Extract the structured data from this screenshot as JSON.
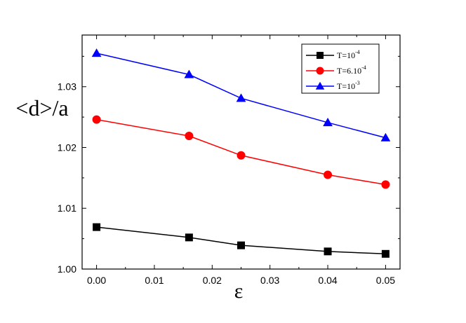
{
  "chart_data": {
    "type": "line",
    "xlabel": "ε",
    "ylabel": "<d>/a",
    "xlim": [
      -0.0025,
      0.0525
    ],
    "ylim": [
      1.0,
      1.0385
    ],
    "xticks": [
      0.0,
      0.01,
      0.02,
      0.03,
      0.04,
      0.05
    ],
    "xtick_labels": [
      "0.00",
      "0.01",
      "0.02",
      "0.03",
      "0.04",
      "0.05"
    ],
    "yticks": [
      1.0,
      1.01,
      1.02,
      1.03
    ],
    "ytick_labels": [
      "1.00",
      "1.01",
      "1.02",
      "1.03"
    ],
    "x": [
      0.0,
      0.016,
      0.025,
      0.04,
      0.05
    ],
    "legend_position": "top-right",
    "grid": false,
    "series": [
      {
        "name": "T=10^-4",
        "legend_base": "T=10",
        "legend_exp": "-4",
        "color": "#000000",
        "marker": "square",
        "values": [
          1.0069,
          1.0052,
          1.0039,
          1.0029,
          1.0025
        ]
      },
      {
        "name": "T=6.10^-4",
        "legend_base": "T=6.10",
        "legend_exp": "-4",
        "color": "#ff0000",
        "marker": "circle",
        "values": [
          1.0246,
          1.0219,
          1.0187,
          1.0155,
          1.0139
        ]
      },
      {
        "name": "T=10^-3",
        "legend_base": "T=10",
        "legend_exp": "-3",
        "color": "#0000ff",
        "marker": "triangle",
        "values": [
          1.0355,
          1.032,
          1.0281,
          1.0241,
          1.0216
        ]
      }
    ]
  }
}
